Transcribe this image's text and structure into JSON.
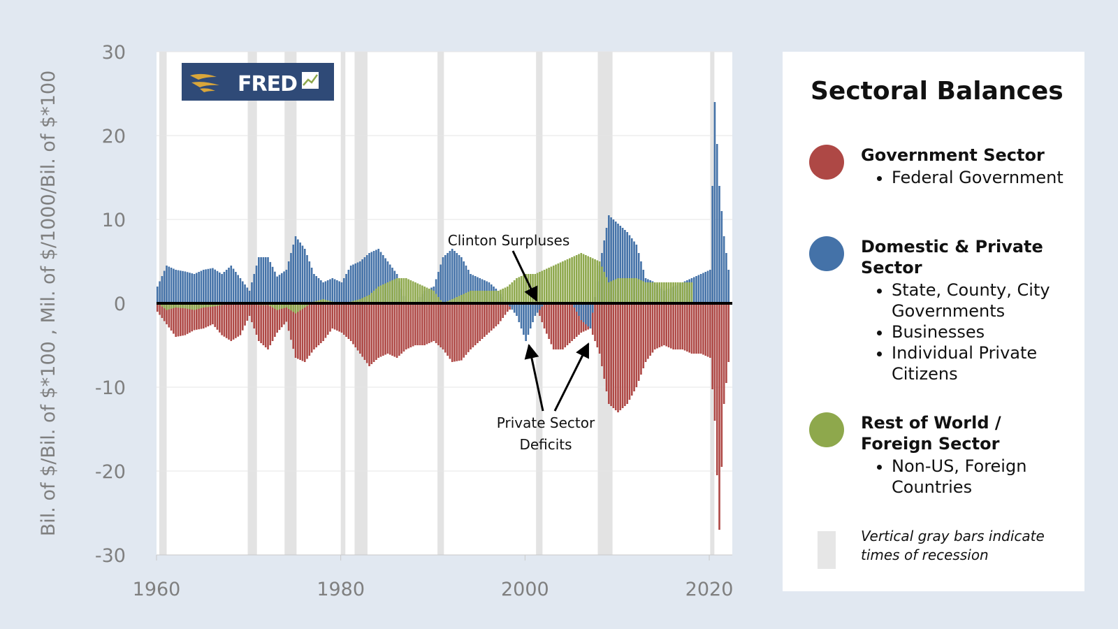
{
  "chart_data": {
    "type": "bar",
    "ylabel": "Bil. of $/Bil. of $*100 , Mil. of $/1000/Bil. of $*100",
    "xlabel": "",
    "xlim": [
      1960,
      2022.5
    ],
    "ylim": [
      -30,
      30
    ],
    "x_ticks": [
      1960,
      1980,
      2000,
      2020
    ],
    "y_ticks": [
      30,
      20,
      10,
      0,
      -10,
      -20,
      -30
    ],
    "grid": true,
    "recessions": [
      [
        1960.3,
        1961.1
      ],
      [
        1969.9,
        1970.9
      ],
      [
        1973.9,
        1975.2
      ],
      [
        1980.0,
        1980.5
      ],
      [
        1981.5,
        1982.9
      ],
      [
        1990.5,
        1991.2
      ],
      [
        2001.2,
        2001.9
      ],
      [
        2007.9,
        2009.5
      ],
      [
        2020.1,
        2020.4
      ]
    ],
    "series": [
      {
        "name": "Government Sector",
        "color": "#ae4845",
        "points": [
          [
            1960.0,
            -1.0
          ],
          [
            1961.0,
            -2.5
          ],
          [
            1962.0,
            -4.0
          ],
          [
            1963.0,
            -3.8
          ],
          [
            1964.0,
            -3.2
          ],
          [
            1965.0,
            -3.0
          ],
          [
            1966.0,
            -2.5
          ],
          [
            1967.0,
            -3.8
          ],
          [
            1968.0,
            -4.5
          ],
          [
            1969.0,
            -3.8
          ],
          [
            1970.0,
            -1.5
          ],
          [
            1971.0,
            -4.5
          ],
          [
            1972.0,
            -5.5
          ],
          [
            1973.0,
            -3.5
          ],
          [
            1974.0,
            -2.2
          ],
          [
            1975.0,
            -6.5
          ],
          [
            1976.0,
            -7.0
          ],
          [
            1977.0,
            -5.5
          ],
          [
            1978.0,
            -4.5
          ],
          [
            1979.0,
            -3.0
          ],
          [
            1980.0,
            -3.5
          ],
          [
            1981.0,
            -4.5
          ],
          [
            1982.0,
            -6.0
          ],
          [
            1983.0,
            -7.5
          ],
          [
            1984.0,
            -6.5
          ],
          [
            1985.0,
            -6.0
          ],
          [
            1986.0,
            -6.5
          ],
          [
            1987.0,
            -5.5
          ],
          [
            1988.0,
            -5.0
          ],
          [
            1989.0,
            -5.0
          ],
          [
            1990.0,
            -4.5
          ],
          [
            1991.0,
            -5.5
          ],
          [
            1992.0,
            -7.0
          ],
          [
            1993.0,
            -6.8
          ],
          [
            1994.0,
            -5.5
          ],
          [
            1995.0,
            -4.5
          ],
          [
            1996.0,
            -3.5
          ],
          [
            1997.0,
            -2.5
          ],
          [
            1998.0,
            -1.0
          ],
          [
            1999.0,
            0.0
          ],
          [
            2000.0,
            0.0
          ],
          [
            2001.0,
            0.0
          ],
          [
            2002.0,
            -3.0
          ],
          [
            2003.0,
            -5.5
          ],
          [
            2004.0,
            -5.5
          ],
          [
            2005.0,
            -4.5
          ],
          [
            2006.0,
            -3.5
          ],
          [
            2007.0,
            -3.0
          ],
          [
            2008.0,
            -6.0
          ],
          [
            2009.0,
            -12.0
          ],
          [
            2010.0,
            -13.0
          ],
          [
            2011.0,
            -12.0
          ],
          [
            2012.0,
            -10.0
          ],
          [
            2013.0,
            -7.0
          ],
          [
            2014.0,
            -5.5
          ],
          [
            2015.0,
            -5.0
          ],
          [
            2016.0,
            -5.5
          ],
          [
            2017.0,
            -5.5
          ],
          [
            2018.0,
            -6.0
          ],
          [
            2019.0,
            -6.0
          ],
          [
            2020.0,
            -6.5
          ],
          [
            2020.5,
            -14.0
          ],
          [
            2021.0,
            -27.0
          ],
          [
            2021.5,
            -12.0
          ],
          [
            2022.0,
            -7.0
          ]
        ]
      },
      {
        "name": "Domestic & Private Sector",
        "color": "#4472a8",
        "points": [
          [
            1960.0,
            2.0
          ],
          [
            1961.0,
            4.5
          ],
          [
            1962.0,
            4.0
          ],
          [
            1963.0,
            3.8
          ],
          [
            1964.0,
            3.5
          ],
          [
            1965.0,
            4.0
          ],
          [
            1966.0,
            4.2
          ],
          [
            1967.0,
            3.5
          ],
          [
            1968.0,
            4.5
          ],
          [
            1969.0,
            3.0
          ],
          [
            1970.0,
            1.5
          ],
          [
            1971.0,
            5.5
          ],
          [
            1972.0,
            5.5
          ],
          [
            1973.0,
            3.2
          ],
          [
            1974.0,
            4.0
          ],
          [
            1975.0,
            8.0
          ],
          [
            1976.0,
            6.5
          ],
          [
            1977.0,
            3.5
          ],
          [
            1978.0,
            2.5
          ],
          [
            1979.0,
            3.0
          ],
          [
            1980.0,
            2.5
          ],
          [
            1981.0,
            4.5
          ],
          [
            1982.0,
            5.0
          ],
          [
            1983.0,
            6.0
          ],
          [
            1984.0,
            6.5
          ],
          [
            1985.0,
            5.0
          ],
          [
            1986.0,
            3.5
          ],
          [
            1987.0,
            0.0
          ],
          [
            1988.0,
            0.0
          ],
          [
            1989.0,
            1.5
          ],
          [
            1990.0,
            2.0
          ],
          [
            1991.0,
            5.5
          ],
          [
            1992.0,
            6.5
          ],
          [
            1993.0,
            5.5
          ],
          [
            1994.0,
            3.5
          ],
          [
            1995.0,
            3.0
          ],
          [
            1996.0,
            2.5
          ],
          [
            1997.0,
            1.5
          ],
          [
            1998.0,
            0.0
          ],
          [
            1999.0,
            -1.5
          ],
          [
            2000.0,
            -4.5
          ],
          [
            2001.0,
            -1.5
          ],
          [
            2002.0,
            0.0
          ],
          [
            2003.0,
            0.0
          ],
          [
            2004.0,
            0.0
          ],
          [
            2005.0,
            0.0
          ],
          [
            2006.0,
            -2.0
          ],
          [
            2007.0,
            -3.0
          ],
          [
            2008.0,
            4.5
          ],
          [
            2009.0,
            10.5
          ],
          [
            2010.0,
            9.5
          ],
          [
            2011.0,
            8.5
          ],
          [
            2012.0,
            7.0
          ],
          [
            2013.0,
            3.0
          ],
          [
            2014.0,
            2.5
          ],
          [
            2015.0,
            1.5
          ],
          [
            2016.0,
            2.0
          ],
          [
            2017.0,
            2.5
          ],
          [
            2018.0,
            3.0
          ],
          [
            2019.0,
            3.5
          ],
          [
            2020.0,
            4.0
          ],
          [
            2020.5,
            24.0
          ],
          [
            2021.0,
            14.0
          ],
          [
            2021.5,
            8.0
          ],
          [
            2022.0,
            4.0
          ]
        ]
      },
      {
        "name": "Rest of World / Foreign Sector",
        "color": "#8ea84c",
        "points": [
          [
            1960.0,
            0.0
          ],
          [
            1961.0,
            -0.8
          ],
          [
            1962.0,
            -0.5
          ],
          [
            1963.0,
            -0.6
          ],
          [
            1964.0,
            -0.8
          ],
          [
            1965.0,
            -0.5
          ],
          [
            1966.0,
            -0.4
          ],
          [
            1967.0,
            -0.2
          ],
          [
            1968.0,
            -0.1
          ],
          [
            1969.0,
            0.0
          ],
          [
            1970.0,
            0.0
          ],
          [
            1971.0,
            -0.2
          ],
          [
            1972.0,
            -0.2
          ],
          [
            1973.0,
            -0.8
          ],
          [
            1974.0,
            -0.5
          ],
          [
            1975.0,
            -1.2
          ],
          [
            1976.0,
            -0.5
          ],
          [
            1977.0,
            0.2
          ],
          [
            1978.0,
            0.5
          ],
          [
            1979.0,
            0.2
          ],
          [
            1980.0,
            0.0
          ],
          [
            1981.0,
            0.2
          ],
          [
            1982.0,
            0.5
          ],
          [
            1983.0,
            1.0
          ],
          [
            1984.0,
            2.0
          ],
          [
            1985.0,
            2.5
          ],
          [
            1986.0,
            3.0
          ],
          [
            1987.0,
            3.0
          ],
          [
            1988.0,
            2.5
          ],
          [
            1989.0,
            2.0
          ],
          [
            1990.0,
            1.5
          ],
          [
            1991.0,
            0.0
          ],
          [
            1992.0,
            0.5
          ],
          [
            1993.0,
            1.0
          ],
          [
            1994.0,
            1.5
          ],
          [
            1995.0,
            1.5
          ],
          [
            1996.0,
            1.5
          ],
          [
            1997.0,
            1.5
          ],
          [
            1998.0,
            2.0
          ],
          [
            1999.0,
            3.0
          ],
          [
            2000.0,
            3.5
          ],
          [
            2001.0,
            3.5
          ],
          [
            2002.0,
            4.0
          ],
          [
            2003.0,
            4.5
          ],
          [
            2004.0,
            5.0
          ],
          [
            2005.0,
            5.5
          ],
          [
            2006.0,
            6.0
          ],
          [
            2007.0,
            5.5
          ],
          [
            2008.0,
            5.0
          ],
          [
            2009.0,
            2.5
          ],
          [
            2010.0,
            3.0
          ],
          [
            2011.0,
            3.0
          ],
          [
            2012.0,
            3.0
          ],
          [
            2013.0,
            2.5
          ],
          [
            2014.0,
            2.5
          ],
          [
            2015.0,
            2.5
          ],
          [
            2016.0,
            2.5
          ],
          [
            2017.0,
            2.5
          ],
          [
            2018.0,
            2.5
          ]
        ]
      }
    ],
    "annotations": [
      {
        "text": "Clinton Surpluses"
      },
      {
        "text_lines": [
          "Private Sector",
          "Deficits"
        ]
      }
    ]
  },
  "logo": {
    "text": "FRED"
  },
  "legend": {
    "title": "Sectoral Balances",
    "entries": [
      {
        "label": "Government Sector",
        "color": "#ae4845",
        "items": [
          "Federal Government"
        ]
      },
      {
        "label": "Domestic & Private Sector",
        "color": "#4472a8",
        "items": [
          "State, County, City Governments",
          "Businesses",
          "Individual Private Citizens"
        ]
      },
      {
        "label": "Rest of World / Foreign Sector",
        "color": "#8ea84c",
        "items": [
          "Non-US, Foreign Countries"
        ]
      }
    ],
    "recession_note": "Vertical gray bars indicate times of recession"
  }
}
